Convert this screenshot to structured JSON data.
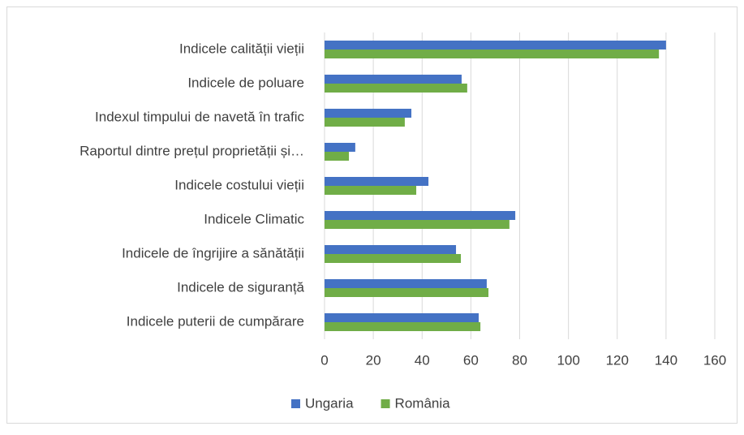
{
  "chart_data": {
    "type": "hbar",
    "categories": [
      "Indicele calității vieții",
      "Indicele de poluare",
      "Indexul timpului de navetă în trafic",
      "Raportul dintre prețul proprietății și…",
      "Indicele costului vieții",
      "Indicele Climatic",
      "Indicele de îngrijire a sănătății",
      "Indicele de siguranță",
      "Indicele puterii de cumpărare"
    ],
    "series": [
      {
        "name": "Ungaria",
        "color": "#4472c4",
        "values": [
          140.0,
          56.2,
          35.6,
          12.6,
          42.6,
          78.2,
          53.9,
          66.5,
          63.2
        ]
      },
      {
        "name": "România",
        "color": "#70ad47",
        "values": [
          137.1,
          58.5,
          32.9,
          10.0,
          37.6,
          75.8,
          55.9,
          67.2,
          63.9
        ]
      }
    ],
    "xlim": [
      0,
      160
    ],
    "xticks": [
      0,
      20,
      40,
      60,
      80,
      100,
      120,
      140,
      160
    ],
    "grid": true,
    "legend": "bottom"
  }
}
